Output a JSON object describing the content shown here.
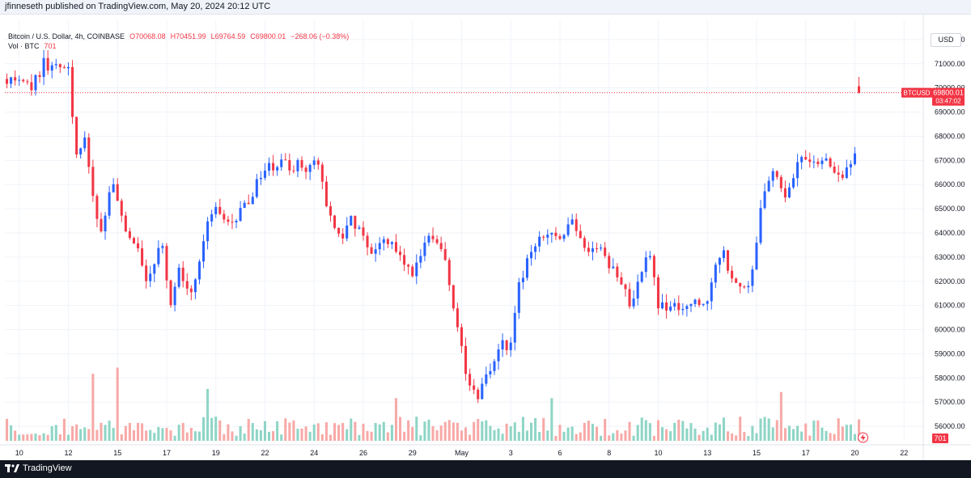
{
  "header": {
    "publisher_text": "jfinneseth published on TradingView.com, May 20, 2024 20:12 UTC"
  },
  "legend": {
    "symbol": "Bitcoin / U.S. Dollar, 4h, COINBASE",
    "open": "O70068.08",
    "high": "H70451.99",
    "low": "L69764.59",
    "close": "C69800.01",
    "change": "−268.06 (−0.38%)",
    "vol_label": "Vol · BTC",
    "vol_value": "701"
  },
  "axis": {
    "currency_label": "USD"
  },
  "footer": {
    "brand": "TradingView"
  },
  "colors": {
    "up": "#2962ff",
    "down": "#f23645",
    "vol_up": "#8ed5c6",
    "vol_down": "#f7a9a7",
    "grid": "#f0f3fa",
    "text": "#131722"
  },
  "chart_data": {
    "type": "candlestick",
    "symbol": "BTCUSD",
    "interval": "4h",
    "exchange": "COINBASE",
    "ylim": [
      55400,
      72800
    ],
    "y_ticks": [
      56000,
      57000,
      58000,
      59000,
      60000,
      61000,
      62000,
      63000,
      64000,
      65000,
      66000,
      67000,
      68000,
      69000,
      70000,
      71000,
      72000
    ],
    "y_tick_labels": [
      "56000.00",
      "57000.00",
      "58000.00",
      "59000.00",
      "60000.00",
      "61000.00",
      "62000.00",
      "63000.00",
      "64000.00",
      "65000.00",
      "66000.00",
      "67000.00",
      "68000.00",
      "69000.00",
      "70000.00",
      "71000.00",
      "72000.00"
    ],
    "x_ticks": [
      {
        "bar": 3,
        "label": "10"
      },
      {
        "bar": 15,
        "label": "12"
      },
      {
        "bar": 27,
        "label": "15"
      },
      {
        "bar": 39,
        "label": "17"
      },
      {
        "bar": 51,
        "label": "19"
      },
      {
        "bar": 63,
        "label": "22"
      },
      {
        "bar": 75,
        "label": "24"
      },
      {
        "bar": 87,
        "label": "26"
      },
      {
        "bar": 99,
        "label": "29"
      },
      {
        "bar": 111,
        "label": "May"
      },
      {
        "bar": 123,
        "label": "3"
      },
      {
        "bar": 135,
        "label": "6"
      },
      {
        "bar": 147,
        "label": "8"
      },
      {
        "bar": 159,
        "label": "10"
      },
      {
        "bar": 171,
        "label": "13"
      },
      {
        "bar": 183,
        "label": "15"
      },
      {
        "bar": 195,
        "label": "17"
      },
      {
        "bar": 207,
        "label": "20"
      },
      {
        "bar": 219,
        "label": "22"
      }
    ],
    "ohlc_key_points": [
      [
        0,
        70300
      ],
      [
        6,
        70000
      ],
      [
        9,
        71000
      ],
      [
        12,
        70800
      ],
      [
        15,
        70900
      ],
      [
        17,
        67000
      ],
      [
        19,
        67800
      ],
      [
        21,
        65500
      ],
      [
        23,
        64000
      ],
      [
        26,
        66200
      ],
      [
        29,
        64300
      ],
      [
        32,
        63400
      ],
      [
        34,
        62100
      ],
      [
        38,
        63500
      ],
      [
        40,
        61000
      ],
      [
        42,
        62400
      ],
      [
        45,
        61700
      ],
      [
        47,
        62600
      ],
      [
        49,
        64600
      ],
      [
        51,
        65100
      ],
      [
        54,
        64300
      ],
      [
        58,
        65100
      ],
      [
        60,
        65700
      ],
      [
        63,
        66600
      ],
      [
        66,
        66900
      ],
      [
        69,
        66700
      ],
      [
        72,
        66800
      ],
      [
        74,
        66700
      ],
      [
        76,
        66900
      ],
      [
        79,
        64500
      ],
      [
        82,
        63900
      ],
      [
        84,
        64600
      ],
      [
        87,
        63900
      ],
      [
        90,
        63100
      ],
      [
        92,
        63900
      ],
      [
        95,
        63400
      ],
      [
        97,
        62900
      ],
      [
        99,
        62200
      ],
      [
        102,
        63400
      ],
      [
        104,
        63900
      ],
      [
        107,
        62900
      ],
      [
        109,
        61100
      ],
      [
        111,
        59200
      ],
      [
        113,
        57600
      ],
      [
        115,
        57100
      ],
      [
        117,
        58000
      ],
      [
        120,
        59400
      ],
      [
        123,
        59300
      ],
      [
        125,
        61800
      ],
      [
        128,
        63300
      ],
      [
        130,
        63700
      ],
      [
        133,
        64000
      ],
      [
        136,
        63900
      ],
      [
        138,
        64600
      ],
      [
        140,
        63700
      ],
      [
        142,
        63200
      ],
      [
        145,
        63600
      ],
      [
        147,
        62600
      ],
      [
        150,
        62100
      ],
      [
        152,
        61000
      ],
      [
        155,
        62600
      ],
      [
        157,
        63200
      ],
      [
        159,
        61000
      ],
      [
        162,
        60900
      ],
      [
        165,
        61100
      ],
      [
        168,
        61000
      ],
      [
        171,
        61300
      ],
      [
        173,
        62900
      ],
      [
        175,
        63200
      ],
      [
        177,
        62100
      ],
      [
        180,
        61600
      ],
      [
        182,
        62400
      ],
      [
        184,
        65100
      ],
      [
        186,
        66300
      ],
      [
        188,
        66500
      ],
      [
        190,
        65400
      ],
      [
        192,
        66200
      ],
      [
        194,
        67300
      ],
      [
        196,
        66700
      ],
      [
        198,
        66900
      ],
      [
        200,
        67100
      ],
      [
        202,
        66600
      ],
      [
        204,
        66400
      ],
      [
        206,
        66900
      ],
      [
        207,
        67400
      ],
      [
        208,
        70068
      ]
    ],
    "last_bar": {
      "open": 70068.08,
      "high": 70451.99,
      "low": 69764.59,
      "close": 69800.01
    },
    "last_price": {
      "label": "BTCUSD",
      "value": 69800.01,
      "value_text": "69800.01",
      "countdown": "03:47:02"
    },
    "volume": {
      "unit": "BTC",
      "last_value": 701,
      "last_value_text": "701",
      "spikes": [
        {
          "bar": 21,
          "value": 2200
        },
        {
          "bar": 27,
          "value": 2400
        },
        {
          "bar": 49,
          "value": 1700
        },
        {
          "bar": 95,
          "value": 1400
        },
        {
          "bar": 133,
          "value": 1400
        },
        {
          "bar": 189,
          "value": 1600
        },
        {
          "bar": 210,
          "value": 1700
        }
      ]
    }
  }
}
